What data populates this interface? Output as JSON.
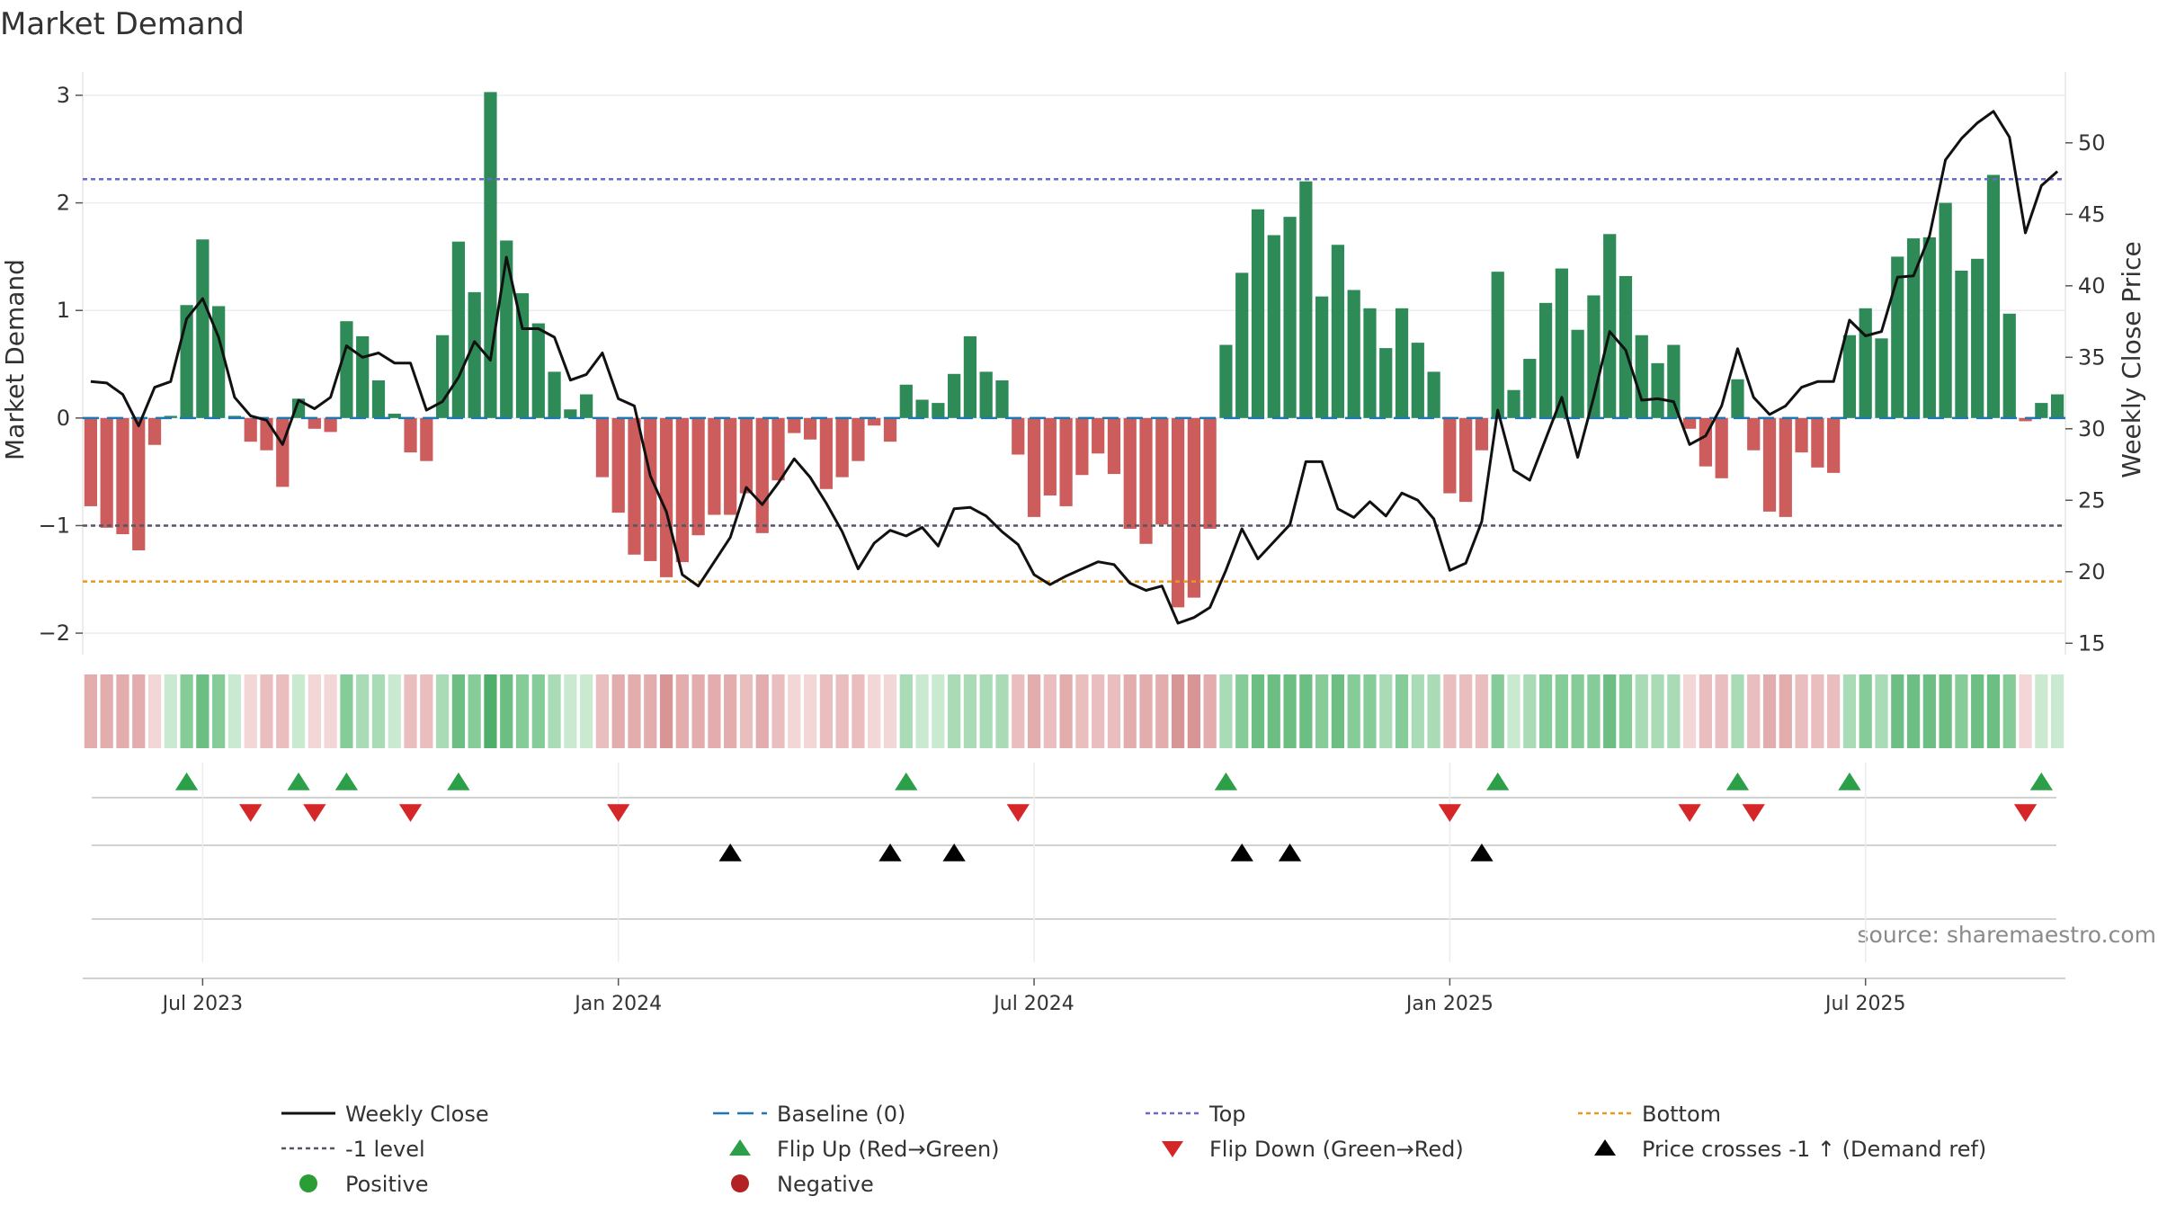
{
  "chart_data": {
    "type": "bar",
    "title": "Market Demand",
    "ylabel": "Market Demand",
    "y2label": "Weekly Close Price",
    "source": "source: sharemaestro.com",
    "ylim": [
      -2.2,
      3.05
    ],
    "y2lim": [
      14.2,
      53.7
    ],
    "yticks": [
      -2,
      -1,
      0,
      1,
      2,
      3
    ],
    "yticklabels": [
      "−2",
      "−1",
      "0",
      "1",
      "2",
      "3"
    ],
    "y2ticks": [
      15,
      20,
      25,
      30,
      35,
      40,
      45,
      50
    ],
    "xticks": [
      {
        "label": "Jul 2023",
        "index": 7
      },
      {
        "label": "Jan 2024",
        "index": 33
      },
      {
        "label": "Jul 2024",
        "index": 59
      },
      {
        "label": "Jan 2025",
        "index": 85
      },
      {
        "label": "Jul 2025",
        "index": 111
      }
    ],
    "levels": {
      "top": 2.22,
      "bottom": -1.52,
      "minus_one": -1.0,
      "baseline": 0
    },
    "demand": [
      -0.82,
      -1.02,
      -1.08,
      -1.23,
      -0.25,
      0.02,
      1.05,
      1.66,
      1.04,
      0.02,
      -0.22,
      -0.3,
      -0.64,
      0.18,
      -0.1,
      -0.13,
      0.9,
      0.76,
      0.35,
      0.04,
      -0.32,
      -0.4,
      0.77,
      1.64,
      1.17,
      3.03,
      1.65,
      1.16,
      0.88,
      0.43,
      0.08,
      0.22,
      -0.55,
      -0.88,
      -1.27,
      -1.33,
      -1.48,
      -1.34,
      -1.09,
      -0.9,
      -0.9,
      -0.7,
      -1.07,
      -0.58,
      -0.14,
      -0.2,
      -0.66,
      -0.55,
      -0.4,
      -0.07,
      -0.22,
      0.31,
      0.17,
      0.14,
      0.41,
      0.76,
      0.43,
      0.35,
      -0.34,
      -0.92,
      -0.72,
      -0.82,
      -0.53,
      -0.33,
      -0.52,
      -1.03,
      -1.17,
      -0.99,
      -1.76,
      -1.67,
      -1.03,
      0.68,
      1.35,
      1.94,
      1.7,
      1.87,
      2.2,
      1.13,
      1.61,
      1.19,
      1.02,
      0.65,
      1.02,
      0.7,
      0.43,
      -0.7,
      -0.78,
      -0.3,
      1.36,
      0.26,
      0.55,
      1.07,
      1.39,
      0.82,
      1.14,
      1.71,
      1.32,
      0.77,
      0.51,
      0.68,
      -0.1,
      -0.45,
      -0.56,
      0.36,
      -0.3,
      -0.87,
      -0.92,
      -0.32,
      -0.46,
      -0.51,
      0.77,
      1.02,
      0.74,
      1.5,
      1.67,
      1.68,
      2.0,
      1.37,
      1.48,
      2.26,
      0.97,
      -0.03,
      0.14,
      0.22
    ],
    "price": [
      33.3,
      33.2,
      32.4,
      30.2,
      32.9,
      33.3,
      37.7,
      39.1,
      36.4,
      32.2,
      30.9,
      30.6,
      28.9,
      32.0,
      31.4,
      32.2,
      35.8,
      35.0,
      35.3,
      34.6,
      34.6,
      31.3,
      31.9,
      33.6,
      36.1,
      34.8,
      42.0,
      37.0,
      37.0,
      36.4,
      33.4,
      33.8,
      35.3,
      32.1,
      31.6,
      26.7,
      24.2,
      19.8,
      19.0,
      20.7,
      22.4,
      25.9,
      24.7,
      26.2,
      27.9,
      26.6,
      24.8,
      22.8,
      20.2,
      22.0,
      22.9,
      22.5,
      23.1,
      21.8,
      24.4,
      24.5,
      23.9,
      22.8,
      21.9,
      19.8,
      19.1,
      19.7,
      20.2,
      20.7,
      20.5,
      19.2,
      18.7,
      19.0,
      16.4,
      16.8,
      17.5,
      20.1,
      23.0,
      20.9,
      22.1,
      23.3,
      27.7,
      27.7,
      24.4,
      23.8,
      24.9,
      23.9,
      25.5,
      25.0,
      23.7,
      20.1,
      20.6,
      23.5,
      31.3,
      27.1,
      26.4,
      29.3,
      32.2,
      28.0,
      32.2,
      36.8,
      35.5,
      32.0,
      32.1,
      31.9,
      28.9,
      29.5,
      31.6,
      35.6,
      32.2,
      31.0,
      31.6,
      32.9,
      33.3,
      33.3,
      37.6,
      36.5,
      36.8,
      40.6,
      40.7,
      43.5,
      48.8,
      50.3,
      51.4,
      52.2,
      50.4,
      43.7,
      47.0,
      48.0
    ],
    "flip_up_idx": [
      6,
      13,
      16,
      23,
      51,
      71,
      88,
      103,
      110,
      122
    ],
    "flip_down_idx": [
      10,
      14,
      20,
      33,
      58,
      85,
      100,
      104,
      121
    ],
    "price_cross_idx": [
      40,
      50,
      54,
      72,
      75,
      87
    ],
    "legend": [
      {
        "key": "weekly_close",
        "label": "Weekly Close",
        "swatch": "line",
        "color": "#111111"
      },
      {
        "key": "baseline",
        "label": "Baseline (0)",
        "swatch": "dashed",
        "color": "#1f77b4"
      },
      {
        "key": "top",
        "label": "Top",
        "swatch": "dotted",
        "color": "#6a6ac8"
      },
      {
        "key": "bottom",
        "label": "Bottom",
        "swatch": "dotted",
        "color": "#e69a1b"
      },
      {
        "key": "minus_one",
        "label": "-1 level",
        "swatch": "dotted",
        "color": "#555566"
      },
      {
        "key": "flip_up",
        "label": "Flip Up (Red→Green)",
        "swatch": "tri-up",
        "color": "#2ca049"
      },
      {
        "key": "flip_down",
        "label": "Flip Down (Green→Red)",
        "swatch": "tri-down",
        "color": "#d62728"
      },
      {
        "key": "price_cross",
        "label": "Price crosses -1 ↑ (Demand ref)",
        "swatch": "tri-up",
        "color": "#000000"
      },
      {
        "key": "positive",
        "label": "Positive",
        "swatch": "dot",
        "color": "#2a9d35"
      },
      {
        "key": "negative",
        "label": "Negative",
        "swatch": "dot",
        "color": "#b22222"
      }
    ]
  },
  "colors": {
    "positive_bar": "#2e8b57",
    "negative_bar": "#cd5c5c",
    "price_line": "#111111",
    "baseline": "#1f77b4",
    "top": "#6a6ac8",
    "bottom": "#e69a1b",
    "minus_one": "#555566",
    "flip_up": "#2ca049",
    "flip_down": "#d62728",
    "price_cross": "#000000"
  }
}
